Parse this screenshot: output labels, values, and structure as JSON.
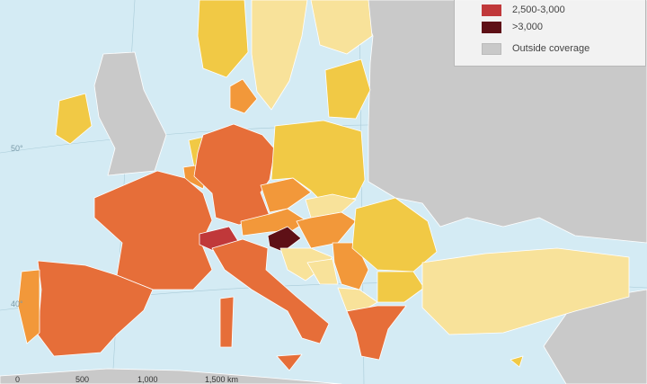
{
  "colors": {
    "sea": "#d4ebf4",
    "outside": "#c9c9c9",
    "pale_yellow": "#f8e29a",
    "yellow": "#f1c945",
    "light_orange": "#f2983a",
    "orange": "#e66e39",
    "red": "#c0383a",
    "dark_red": "#5e1016"
  },
  "legend": {
    "items": [
      {
        "label": "2,500-3,000",
        "color": "#c0383a"
      },
      {
        "label": ">3,000",
        "color": "#5e1016"
      },
      {
        "label": "Outside coverage",
        "color": "#c9c9c9"
      }
    ]
  },
  "graticule": {
    "lat_50": "50°",
    "lat_40": "40°"
  },
  "scale_bar": {
    "ticks": [
      "0",
      "500",
      "1,000",
      "1,500 km"
    ]
  }
}
